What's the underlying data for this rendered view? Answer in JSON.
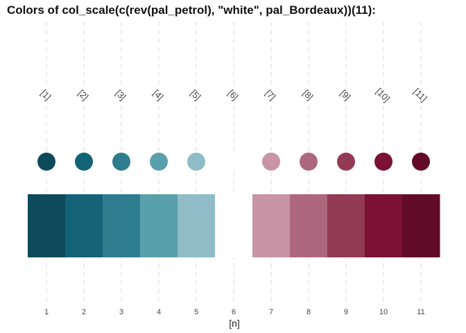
{
  "chart_data": {
    "type": "bar",
    "title": "Colors of col_scale(c(rev(pal_petrol), \"white\", pal_Bordeaux))(11):",
    "xlabel": "[n]",
    "ylabel": "",
    "x": [
      1,
      2,
      3,
      4,
      5,
      6,
      7,
      8,
      9,
      10,
      11
    ],
    "index_labels": [
      "[1]",
      "[2]",
      "[3]",
      "[4]",
      "[5]",
      "[6]",
      "[7]",
      "[8]",
      "[9]",
      "[10]",
      "[11]"
    ],
    "tick_labels": [
      "1",
      "2",
      "3",
      "4",
      "5",
      "6",
      "7",
      "8",
      "9",
      "10",
      "11"
    ],
    "colors": [
      "#0D4A5C",
      "#136276",
      "#2E7D8E",
      "#5A9FAC",
      "#8FBCC7",
      "#FFFFFF",
      "#C994A5",
      "#AD677F",
      "#933A57",
      "#7B1134",
      "#620B29"
    ],
    "grid": "vertical dashed"
  }
}
